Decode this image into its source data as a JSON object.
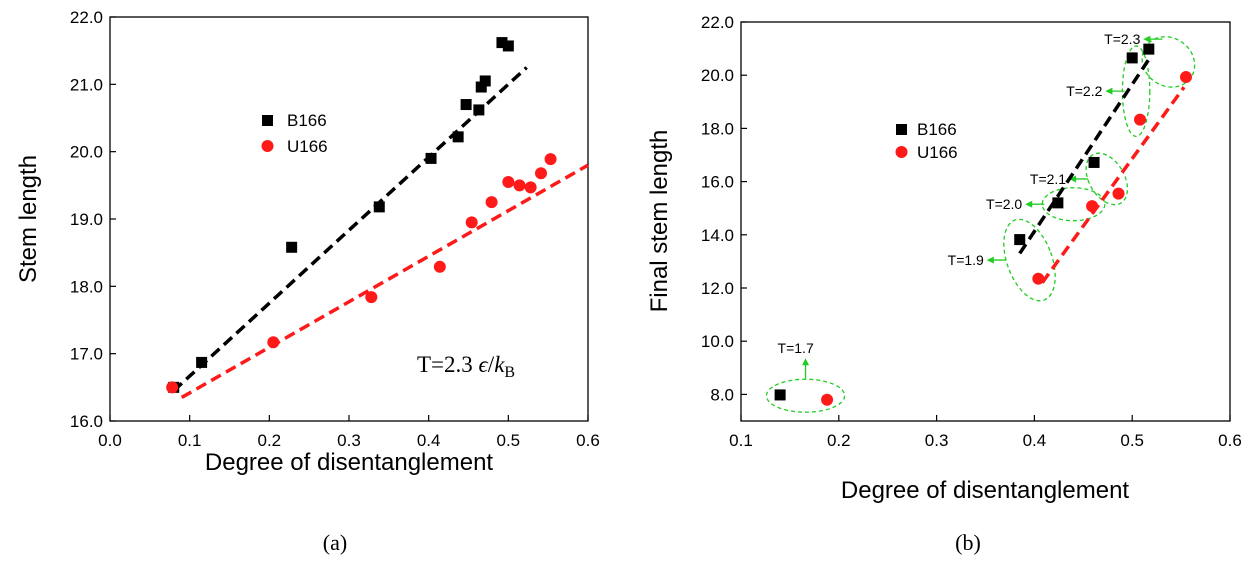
{
  "colors": {
    "b166": "#000000",
    "u166": "#ff1a1a",
    "annotation": "#22cc22"
  },
  "chart_data": [
    {
      "type": "scatter",
      "panel_label": "(a)",
      "xlabel": "Degree of disentanglement",
      "ylabel": "Stem length",
      "xlim": [
        0.0,
        0.6
      ],
      "ylim": [
        16.0,
        22.0
      ],
      "xticks": [
        "0.0",
        "0.1",
        "0.2",
        "0.3",
        "0.4",
        "0.5",
        "0.6"
      ],
      "yticks": [
        "16.0",
        "17.0",
        "18.0",
        "19.0",
        "20.0",
        "21.0",
        "22.0"
      ],
      "legend_position": "upper-left",
      "annotation": {
        "prefix": "T=2.3 ",
        "epsilon": "ϵ",
        "slash": "/",
        "k": "k",
        "sub": "B"
      },
      "series": [
        {
          "name": "B166",
          "marker": "square",
          "points": [
            [
              0.08,
              16.5
            ],
            [
              0.115,
              16.87
            ],
            [
              0.228,
              18.58
            ],
            [
              0.338,
              19.18
            ],
            [
              0.403,
              19.9
            ],
            [
              0.437,
              20.22
            ],
            [
              0.447,
              20.7
            ],
            [
              0.463,
              20.62
            ],
            [
              0.466,
              20.96
            ],
            [
              0.471,
              21.05
            ],
            [
              0.492,
              21.62
            ],
            [
              0.5,
              21.57
            ]
          ],
          "fit": [
            [
              0.08,
              16.45
            ],
            [
              0.523,
              21.25
            ]
          ]
        },
        {
          "name": "U166",
          "marker": "circle",
          "points": [
            [
              0.078,
              16.5
            ],
            [
              0.205,
              17.17
            ],
            [
              0.328,
              17.84
            ],
            [
              0.414,
              18.29
            ],
            [
              0.454,
              18.95
            ],
            [
              0.479,
              19.25
            ],
            [
              0.5,
              19.55
            ],
            [
              0.514,
              19.5
            ],
            [
              0.528,
              19.47
            ],
            [
              0.541,
              19.68
            ],
            [
              0.553,
              19.89
            ]
          ],
          "fit": [
            [
              0.09,
              16.35
            ],
            [
              0.6,
              19.8
            ]
          ]
        }
      ]
    },
    {
      "type": "scatter",
      "panel_label": "(b)",
      "xlabel": "Degree of disentanglement",
      "ylabel": "Final stem length",
      "xlim": [
        0.1,
        0.6
      ],
      "ylim": [
        7.0,
        22.0
      ],
      "xticks": [
        "0.1",
        "0.2",
        "0.3",
        "0.4",
        "0.5",
        "0.6"
      ],
      "yticks": [
        "8.0",
        "10.0",
        "12.0",
        "14.0",
        "16.0",
        "18.0",
        "20.0",
        "22.0"
      ],
      "legend_position": "upper-left",
      "series": [
        {
          "name": "B166",
          "marker": "square",
          "points": [
            [
              0.14,
              7.98
            ],
            [
              0.385,
              13.82
            ],
            [
              0.424,
              15.2
            ],
            [
              0.461,
              16.72
            ],
            [
              0.5,
              20.65
            ],
            [
              0.517,
              20.98
            ]
          ],
          "fit": [
            [
              0.385,
              13.3
            ],
            [
              0.518,
              20.65
            ]
          ]
        },
        {
          "name": "U166",
          "marker": "circle",
          "points": [
            [
              0.188,
              7.8
            ],
            [
              0.404,
              12.35
            ],
            [
              0.459,
              15.08
            ],
            [
              0.486,
              15.55
            ],
            [
              0.508,
              18.33
            ],
            [
              0.555,
              19.93
            ]
          ],
          "fit": [
            [
              0.408,
              12.2
            ],
            [
              0.553,
              19.55
            ]
          ]
        }
      ],
      "temperature_groups": [
        {
          "label": "T=1.7",
          "ellipse": {
            "cx": 0.166,
            "cy": 7.95,
            "rx": 0.04,
            "ry": 0.62,
            "angle": 0
          }
        },
        {
          "label": "T=1.9",
          "ellipse": {
            "cx": 0.395,
            "cy": 13.05,
            "rx": 0.023,
            "ry": 1.6,
            "angle": -20
          }
        },
        {
          "label": "T=2.0",
          "ellipse": {
            "cx": 0.44,
            "cy": 15.15,
            "rx": 0.032,
            "ry": 0.62,
            "angle": 0
          }
        },
        {
          "label": "T=2.1",
          "ellipse": {
            "cx": 0.474,
            "cy": 16.1,
            "rx": 0.018,
            "ry": 1.05,
            "angle": -30
          }
        },
        {
          "label": "T=2.2",
          "ellipse": {
            "cx": 0.504,
            "cy": 19.4,
            "rx": 0.014,
            "ry": 1.7,
            "angle": 0
          }
        },
        {
          "label": "T=2.3",
          "ellipse": {
            "cx": 0.537,
            "cy": 20.5,
            "rx": 0.028,
            "ry": 0.9,
            "angle": 36
          }
        }
      ]
    }
  ]
}
